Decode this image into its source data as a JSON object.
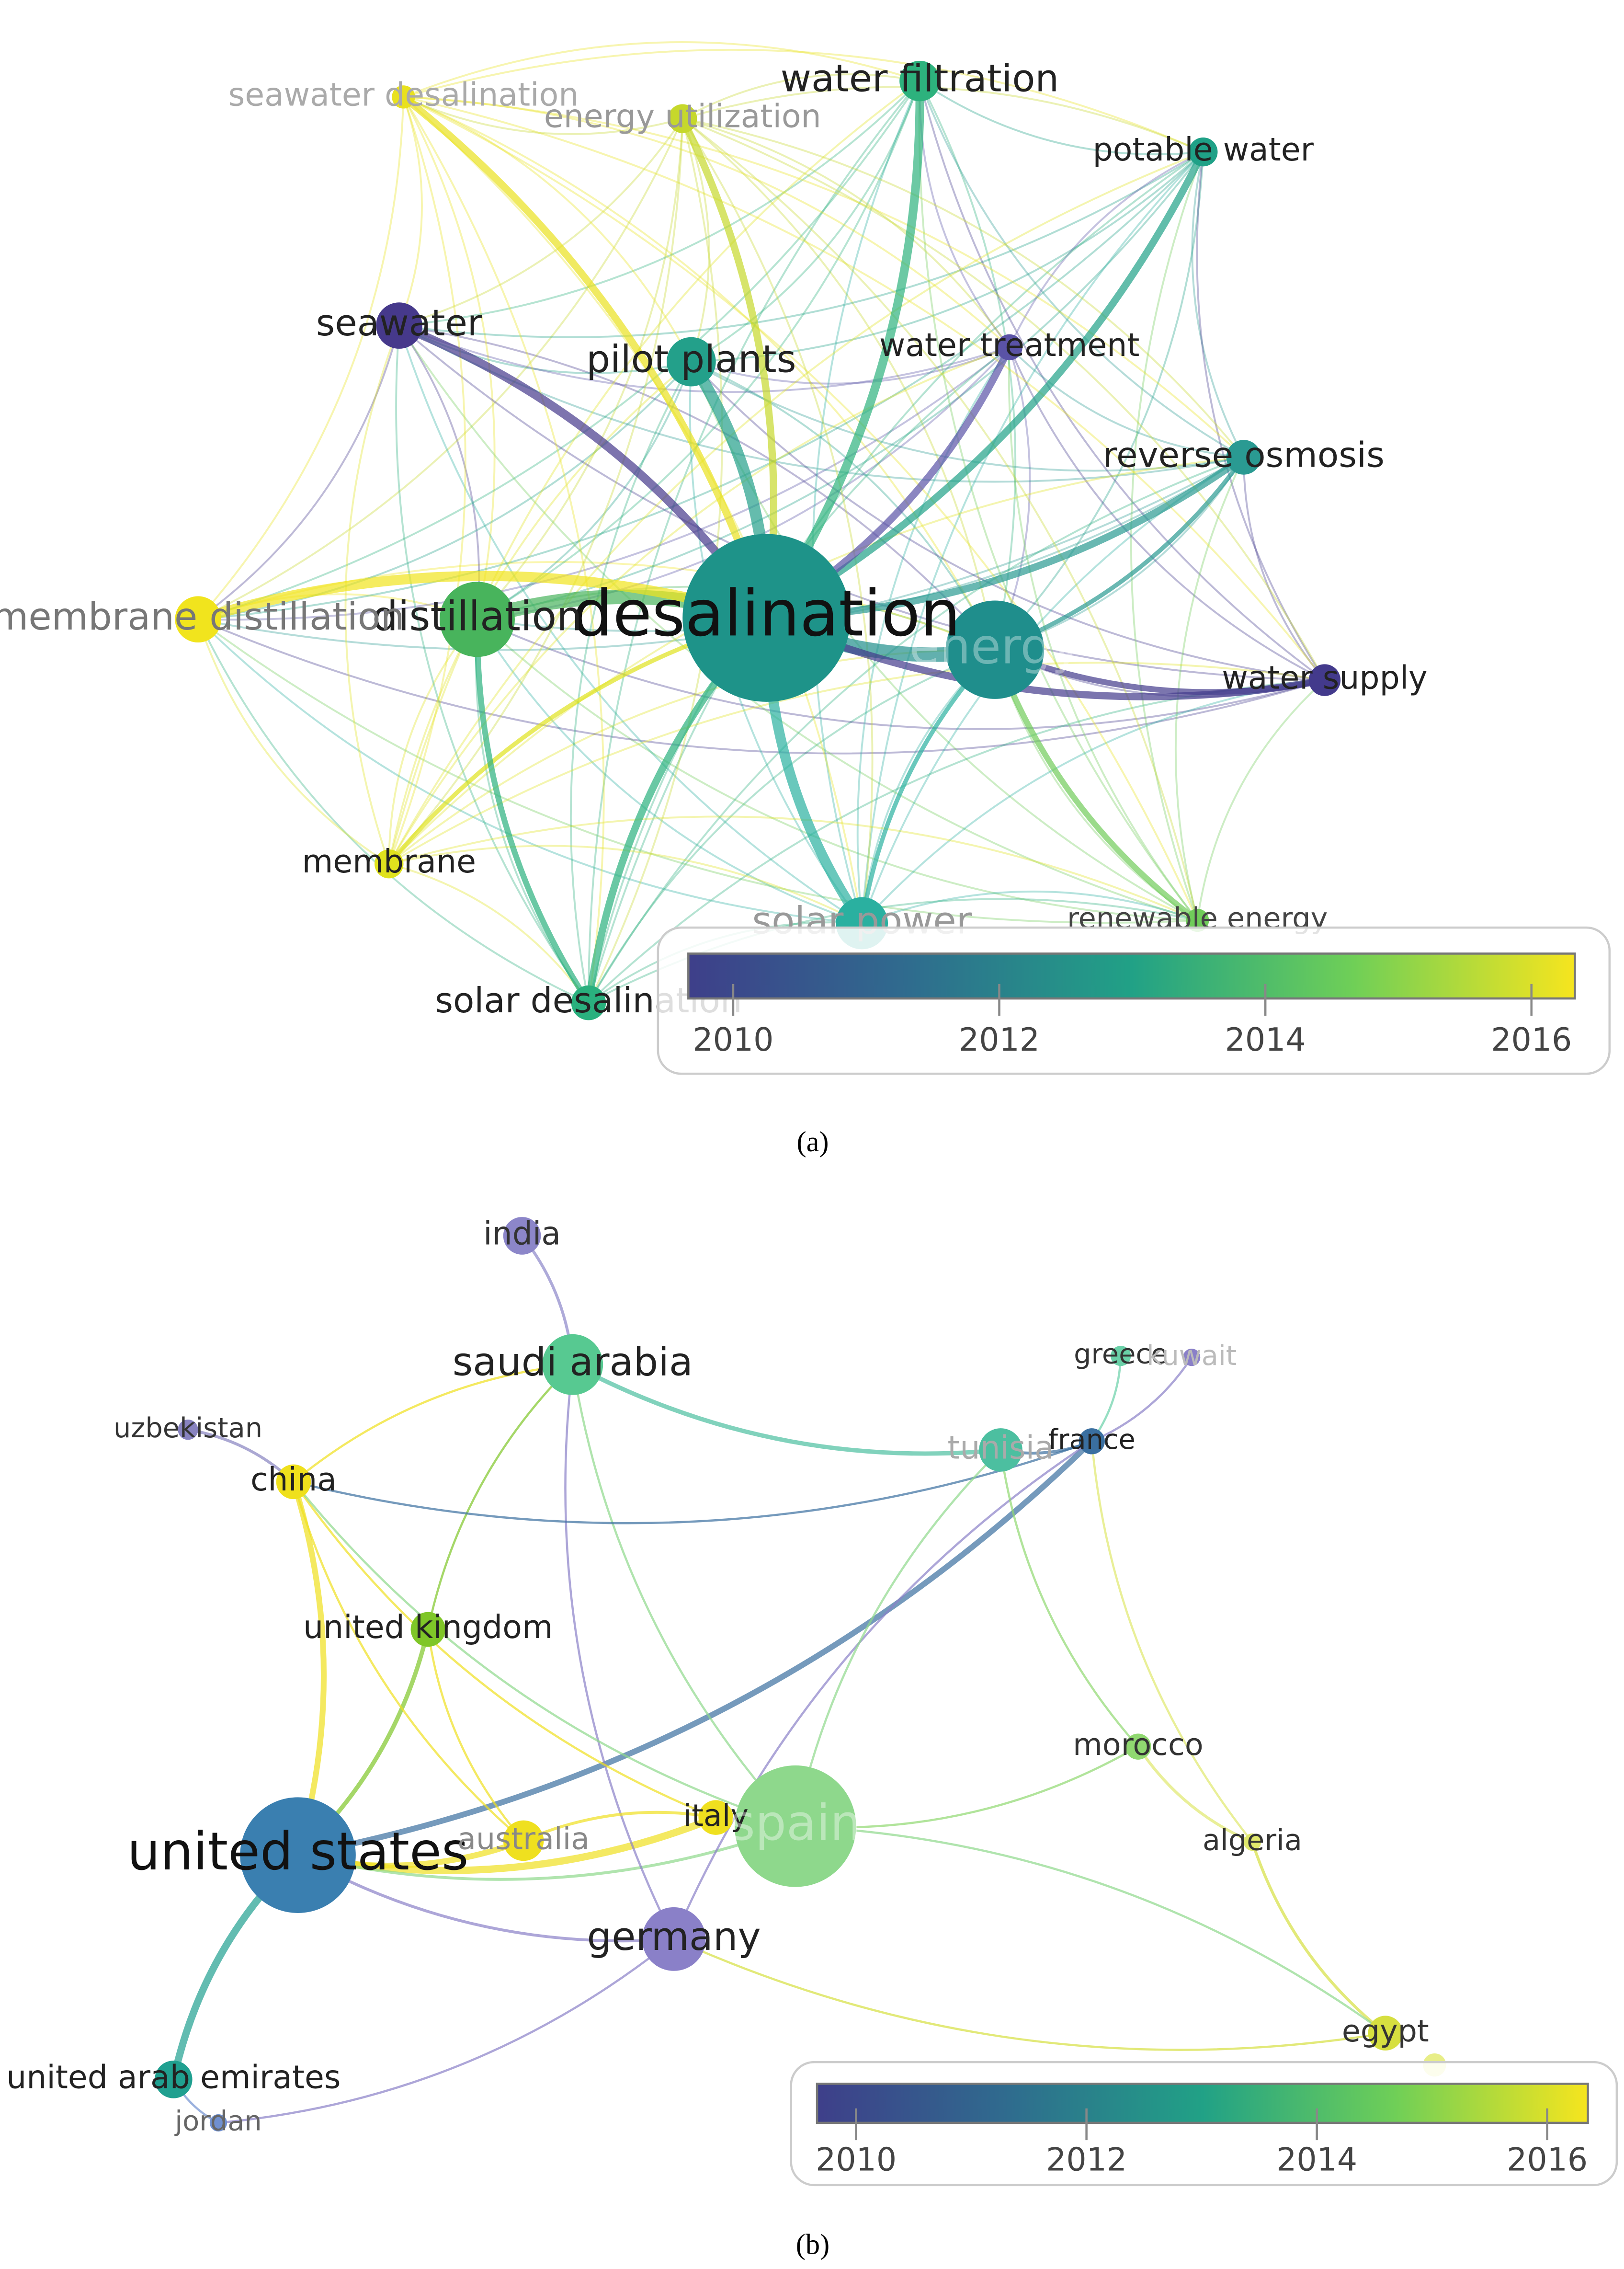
{
  "panels": [
    {
      "caption": "(a)",
      "nodes": [
        {
          "label": "desalination"
        },
        {
          "label": "energy"
        },
        {
          "label": "distillation"
        },
        {
          "label": "membrane distillation"
        },
        {
          "label": "seawater"
        },
        {
          "label": "pilot plants"
        },
        {
          "label": "water filtration"
        },
        {
          "label": "potable water"
        },
        {
          "label": "water treatment"
        },
        {
          "label": "reverse osmosis"
        },
        {
          "label": "water supply"
        },
        {
          "label": "renewable energy"
        },
        {
          "label": "solar power"
        },
        {
          "label": "solar desalination"
        },
        {
          "label": "membrane"
        },
        {
          "label": "seawater desalination"
        },
        {
          "label": "energy utilization"
        }
      ],
      "colorbar": {
        "ticks": [
          2010,
          2012,
          2014,
          2016
        ]
      }
    },
    {
      "caption": "(b)",
      "nodes": [
        {
          "label": "india"
        },
        {
          "label": "saudi arabia"
        },
        {
          "label": "uzbekistan"
        },
        {
          "label": "china"
        },
        {
          "label": "greece"
        },
        {
          "label": "kuwait"
        },
        {
          "label": "tunisia"
        },
        {
          "label": "france"
        },
        {
          "label": "united kingdom"
        },
        {
          "label": "morocco"
        },
        {
          "label": "united states"
        },
        {
          "label": "australia"
        },
        {
          "label": "italy"
        },
        {
          "label": "spain"
        },
        {
          "label": "algeria"
        },
        {
          "label": "germany"
        },
        {
          "label": "egypt"
        },
        {
          "label": "united arab emirates"
        },
        {
          "label": "jordan"
        }
      ],
      "colorbar": {
        "ticks": [
          2010,
          2012,
          2014,
          2016
        ]
      }
    }
  ]
}
